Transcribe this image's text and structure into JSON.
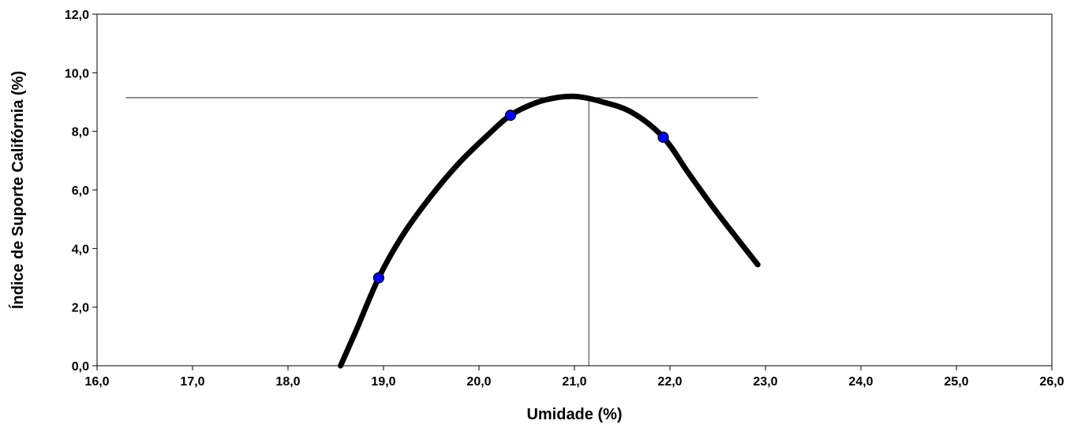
{
  "chart_data": {
    "type": "scatter",
    "title": "",
    "xlabel": "Umidade (%)",
    "ylabel": "Índice de Suporte Califórnia (%)",
    "xlim": [
      16.0,
      26.0
    ],
    "ylim": [
      0.0,
      12.0
    ],
    "x_ticks": [
      "16,0",
      "17,0",
      "18,0",
      "19,0",
      "20,0",
      "21,0",
      "22,0",
      "23,0",
      "24,0",
      "25,0",
      "26,0"
    ],
    "y_ticks": [
      "0,0",
      "2,0",
      "4,0",
      "6,0",
      "8,0",
      "10,0",
      "12,0"
    ],
    "grid": false,
    "legend": "none",
    "series": [
      {
        "kind": "points",
        "x": [
          18.95,
          20.33,
          21.93
        ],
        "y": [
          3.0,
          8.55,
          7.8
        ],
        "color": "#0000ff"
      },
      {
        "kind": "curve",
        "x": [
          18.55,
          18.7,
          18.95,
          19.2,
          19.5,
          19.8,
          20.1,
          20.33,
          20.6,
          20.85,
          21.05,
          21.3,
          21.6,
          21.93,
          22.2,
          22.5,
          22.92
        ],
        "y": [
          0.0,
          1.1,
          3.0,
          4.45,
          5.8,
          6.95,
          7.9,
          8.55,
          8.98,
          9.17,
          9.18,
          9.0,
          8.65,
          7.8,
          6.55,
          5.2,
          3.45
        ],
        "color": "#000000"
      }
    ],
    "reference_lines": {
      "max_isc": 9.15,
      "optimum_moisture": 21.15,
      "horizontal_x_range": [
        16.3,
        22.92
      ]
    }
  }
}
